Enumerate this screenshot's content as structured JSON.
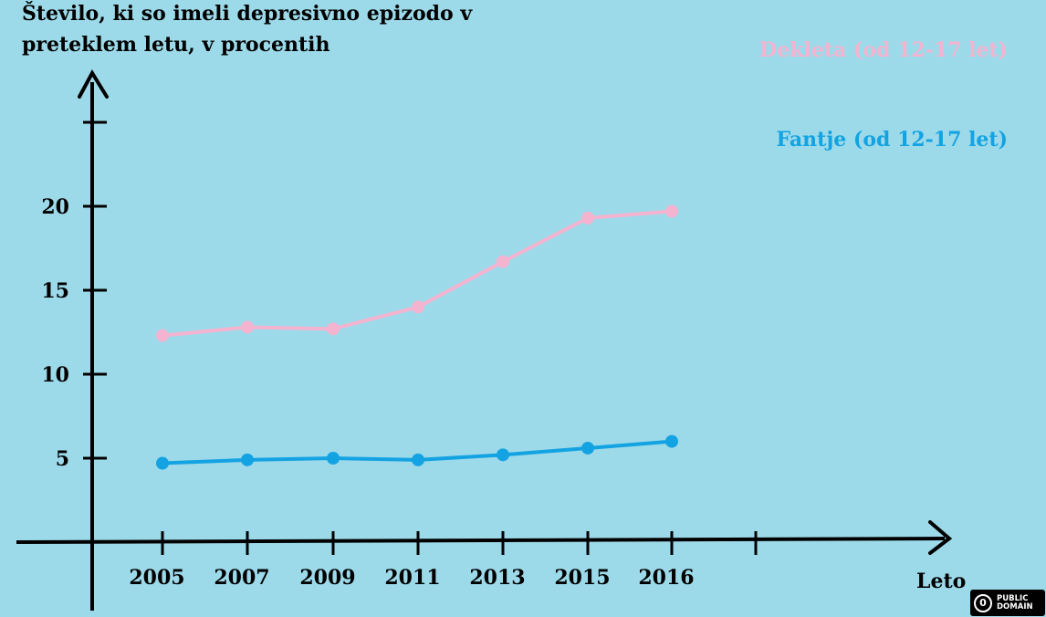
{
  "chart_data": {
    "type": "line",
    "title": "",
    "ylabel_lines": [
      "Število, ki so imeli depresivno epizodo v",
      "preteklem letu, v procentih"
    ],
    "xlabel": "Leto",
    "categories": [
      "2005",
      "2007",
      "2009",
      "2011",
      "2013",
      "2015",
      "2016"
    ],
    "yticks": [
      5,
      10,
      15,
      20,
      25
    ],
    "ytick_labels": [
      "5",
      "10",
      "15",
      "20",
      ""
    ],
    "ylim": [
      0,
      29
    ],
    "grid": false,
    "legend_position": "top-right",
    "series": [
      {
        "name": "Dekleta (od 12-17 let)",
        "color": "#f4b3cf",
        "values": [
          12.3,
          12.8,
          12.7,
          14.0,
          16.7,
          19.3,
          19.7
        ]
      },
      {
        "name": "Fantje (od 12-17 let)",
        "color": "#14a3e2",
        "values": [
          4.7,
          4.9,
          5.0,
          4.9,
          5.2,
          5.6,
          6.0
        ]
      }
    ]
  },
  "badge": {
    "label_line1": "PUBLIC",
    "label_line2": "DOMAIN",
    "icon": "public-domain-icon"
  }
}
